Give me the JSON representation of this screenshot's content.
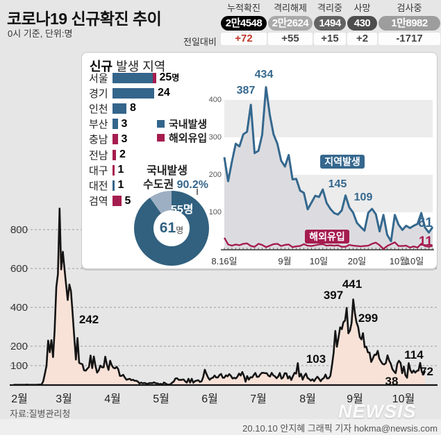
{
  "header": {
    "title": "코로나19 신규확진 추이",
    "subtitle": "0시 기준, 단위:명",
    "delta_row_label": "전일대비",
    "stats": [
      {
        "label": "누적확진",
        "value": "2만4548",
        "delta": "+72",
        "badge_color": "#000000",
        "delta_color": "#c0392b"
      },
      {
        "label": "격리해제",
        "value": "2만2624",
        "delta": "+55",
        "badge_color": "#a9a9a9",
        "delta_color": "#444444"
      },
      {
        "label": "격리중",
        "value": "1494",
        "delta": "+15",
        "badge_color": "#636363",
        "delta_color": "#444444"
      },
      {
        "label": "사망",
        "value": "430",
        "delta": "+2",
        "badge_color": "#4d4d4d",
        "delta_color": "#444444"
      },
      {
        "label": "검사중",
        "value": "1만8982",
        "delta": "-1717",
        "badge_color": "#9d9d9d",
        "delta_color": "#444444"
      }
    ]
  },
  "panel": {
    "title_strong": "신규",
    "title_rest": " 발생 지역",
    "legend": [
      {
        "label": "국내발생",
        "color": "#34658b"
      },
      {
        "label": "해외유입",
        "color": "#a51c4f"
      }
    ],
    "donut_caption_line1": "국내발생",
    "donut_caption_line2": "수도권 ",
    "donut_pct": "90.2%",
    "donut_slice_label": "55명",
    "donut_center_value": "61",
    "donut_center_unit": "명"
  },
  "chart_data": [
    {
      "type": "bar",
      "title": "신규 발생 지역",
      "orientation": "horizontal",
      "categories": [
        "서울",
        "경기",
        "인천",
        "부산",
        "충남",
        "전남",
        "대구",
        "대전",
        "검역"
      ],
      "series": [
        {
          "name": "국내발생",
          "color": "#34658b",
          "values": [
            23,
            24,
            8,
            3,
            0,
            0,
            0,
            1,
            0
          ]
        },
        {
          "name": "해외유입",
          "color": "#a51c4f",
          "values": [
            2,
            0,
            0,
            0,
            3,
            2,
            1,
            0,
            5
          ]
        }
      ],
      "value_labels": [
        "25",
        "24",
        "8",
        "3",
        "3",
        "2",
        "1",
        "1",
        "5"
      ],
      "first_value_unit": "명"
    },
    {
      "type": "pie",
      "subtype": "donut",
      "title": "국내발생 수도권 90.2%",
      "center_label": "61명",
      "slices": [
        {
          "label": "수도권",
          "value": 55,
          "pct": 90.2,
          "color": "#31617f"
        },
        {
          "label": "비수도권",
          "value": 6,
          "pct": 9.8,
          "color": "#9dafc2"
        }
      ]
    },
    {
      "type": "line",
      "x_range": "8.16일~10월10일",
      "x_tick_labels": [
        "8.16일",
        "9월",
        "10일",
        "20일",
        "10월",
        "10일"
      ],
      "x_tick_days": [
        0,
        16,
        25,
        35,
        46,
        55
      ],
      "y_ticks": [
        100,
        200,
        300,
        400
      ],
      "ylim": [
        0,
        470
      ],
      "band_pairs": [
        [
          100,
          200
        ],
        [
          300,
          400
        ]
      ],
      "point_labels": [
        "387",
        "434",
        "145",
        "109",
        "61",
        "11"
      ],
      "series": [
        {
          "name": "지역발생",
          "color": "#35688e",
          "fill": "#dcdce0",
          "values": [
            247,
            183,
            235,
            283,
            276,
            308,
            315,
            387,
            258,
            264,
            307,
            434,
            360,
            308,
            283,
            238,
            222,
            253,
            188,
            189,
            158,
            152,
            108,
            126,
            144,
            141,
            161,
            125,
            109,
            98,
            94,
            105,
            145,
            113,
            99,
            72,
            61,
            51,
            99,
            109,
            95,
            49,
            93,
            40,
            23,
            93,
            67,
            53,
            64,
            58,
            64,
            69,
            98,
            59,
            46,
            61
          ]
        },
        {
          "name": "해외유입",
          "color": "#a51c4f",
          "values": [
            32,
            14,
            11,
            14,
            12,
            16,
            17,
            10,
            8,
            16,
            13,
            7,
            11,
            15,
            16,
            10,
            13,
            14,
            7,
            9,
            10,
            15,
            11,
            10,
            12,
            14,
            15,
            11,
            12,
            11,
            12,
            8,
            8,
            13,
            11,
            10,
            9,
            10,
            11,
            16,
            19,
            12,
            2,
            10,
            15,
            20,
            10,
            10,
            11,
            6,
            9,
            6,
            16,
            10,
            8,
            11
          ]
        }
      ]
    },
    {
      "type": "area",
      "x_range": "2월1일~10월10일",
      "x_tick_labels": [
        "2월",
        "3월",
        "4월",
        "5월",
        "6월",
        "7월",
        "8월",
        "9월",
        "10월"
      ],
      "y_ticks": [
        100,
        200,
        400,
        600,
        800
      ],
      "ylim": [
        0,
        950
      ],
      "line_color": "#141414",
      "fill_color": "#f8e2d8",
      "point_labels": [
        "242",
        "103",
        "397",
        "441",
        "299",
        "38",
        "114",
        "72"
      ],
      "values": [
        2,
        1,
        1,
        1,
        1,
        1,
        1,
        1,
        2,
        1,
        1,
        1,
        1,
        1,
        1,
        2,
        2,
        3,
        20,
        58,
        100,
        229,
        169,
        231,
        144,
        284,
        505,
        571,
        909,
        595,
        686,
        600,
        516,
        438,
        518,
        483,
        367,
        248,
        131,
        242,
        114,
        110,
        107,
        76,
        74,
        84,
        93,
        152,
        87,
        147,
        98,
        64,
        76,
        100,
        91,
        91,
        146,
        105,
        78,
        125,
        101,
        89,
        86,
        94,
        81,
        47,
        47,
        53,
        39,
        27,
        30,
        32,
        25,
        27,
        22,
        22,
        18,
        8,
        13,
        9,
        11,
        8,
        6,
        10,
        10,
        10,
        14,
        9,
        9,
        4,
        6,
        2,
        13,
        8,
        3,
        2,
        4,
        12,
        18,
        34,
        35,
        27,
        26,
        27,
        29,
        19,
        13,
        32,
        13,
        32,
        12,
        20,
        23,
        25,
        16,
        19,
        40,
        79,
        58,
        39,
        27,
        35,
        38,
        49,
        39,
        39,
        51,
        57,
        38,
        38,
        50,
        45,
        56,
        48,
        34,
        37,
        34,
        43,
        59,
        49,
        67,
        48,
        17,
        46,
        28,
        40,
        39,
        51,
        62,
        42,
        43,
        54,
        63,
        63,
        61,
        61,
        48,
        44,
        63,
        50,
        45,
        35,
        44,
        62,
        33,
        39,
        61,
        60,
        34,
        45,
        26,
        45,
        63,
        59,
        113,
        44,
        58,
        28,
        48,
        59,
        36,
        31,
        23,
        30,
        20,
        33,
        43,
        33,
        20,
        31,
        36,
        54,
        34,
        35,
        47,
        103,
        166,
        279,
        197,
        246,
        297,
        288,
        324,
        332,
        397,
        266,
        280,
        320,
        441,
        371,
        323,
        299,
        248,
        235,
        267,
        195,
        198,
        168,
        167,
        119,
        136,
        156,
        155,
        176,
        136,
        121,
        109,
        106,
        113,
        153,
        126,
        110,
        82,
        70,
        61,
        110,
        125,
        114,
        61,
        95,
        50,
        38,
        113,
        77,
        63,
        75,
        64,
        73,
        75,
        114,
        69,
        54,
        72
      ]
    }
  ],
  "footer": {
    "source": "자료:질병관리청",
    "logo": "NEWSIS",
    "credit": "20.10.10 안지혜 그래픽 기자 hokma@newsis.com"
  }
}
